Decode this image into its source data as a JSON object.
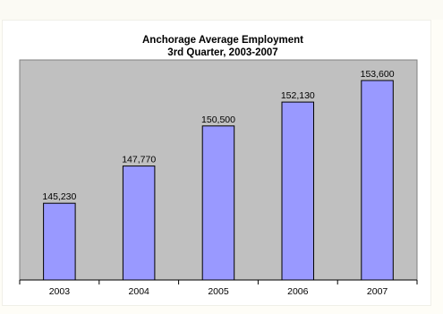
{
  "chart_data": {
    "type": "bar",
    "title": "Anchorage Average Employment",
    "subtitle": "3rd Quarter, 2003-2007",
    "categories": [
      "2003",
      "2004",
      "2005",
      "2006",
      "2007"
    ],
    "values": [
      145230,
      147770,
      150500,
      152130,
      153600
    ],
    "value_labels": [
      "145,230",
      "147,770",
      "150,500",
      "152,130",
      "153,600"
    ],
    "ylim": [
      140000,
      155000
    ],
    "grid": false,
    "legend": "none",
    "colors": {
      "plot_background": "#c0c0c0",
      "bar_fill": "#9999ff",
      "bar_outline": "#000000"
    }
  }
}
